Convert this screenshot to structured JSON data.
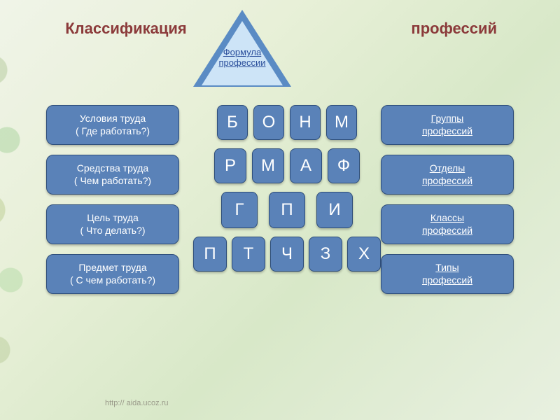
{
  "title": {
    "left": "Классификация",
    "right": "профессий"
  },
  "apex": {
    "label": "Формула профессии"
  },
  "left_col": [
    {
      "line1": "Условия труда",
      "line2": "( Где работать?)"
    },
    {
      "line1": "Средства труда",
      "line2": "( Чем работать?)"
    },
    {
      "line1": "Цель труда",
      "line2": "( Что делать?)"
    },
    {
      "line1": "Предмет  труда",
      "line2": "( С чем работать?)"
    }
  ],
  "right_col": [
    {
      "line1": "Группы",
      "line2": "профессий"
    },
    {
      "line1": "Отделы",
      "line2": "профессий"
    },
    {
      "line1": "Классы",
      "line2": "профессий"
    },
    {
      "line1": "Типы",
      "line2": "профессий"
    }
  ],
  "pyramid": {
    "rows": [
      [
        "Б",
        "О",
        "Н",
        "М"
      ],
      [
        "Р",
        "М",
        "А",
        "Ф"
      ],
      [
        "Г",
        "П",
        "И"
      ],
      [
        "П",
        "Т",
        "Ч",
        "З",
        "Х"
      ]
    ]
  },
  "footer": "http:// aida.ucoz.ru",
  "colors": {
    "box_fill": "#5a82b8",
    "box_border": "#2e4e7a",
    "triangle_outer": "#5a8bc4",
    "triangle_inner": "#cde4f7",
    "title_color": "#8b3a3a",
    "link_color": "#2a4e9b"
  }
}
